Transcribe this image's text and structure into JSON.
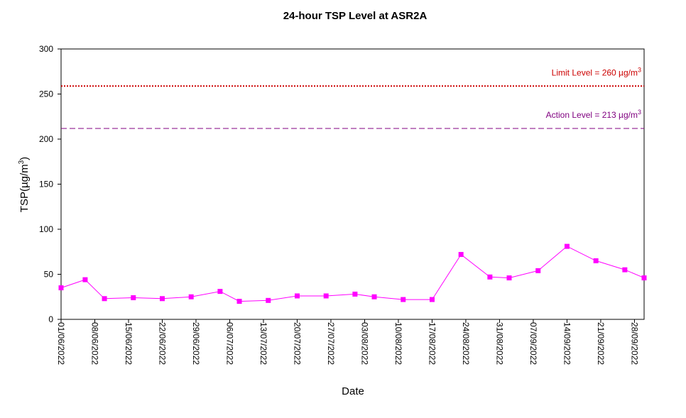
{
  "chart_data": {
    "type": "line",
    "title": "24-hour TSP Level at ASR2A",
    "xlabel": "Date",
    "ylabel": "TSP(µg/m",
    "ylabel_sup": "3",
    "ylabel_close": ")",
    "ylim": [
      0,
      300
    ],
    "yticks": [
      0,
      50,
      100,
      150,
      200,
      250,
      300
    ],
    "grid": false,
    "xlim": [
      "2022-06-01",
      "2022-09-30"
    ],
    "xticks": [
      "01/06/2022",
      "08/06/2022",
      "15/06/2022",
      "22/06/2022",
      "29/06/2022",
      "06/07/2022",
      "13/07/2022",
      "20/07/2022",
      "27/07/2022",
      "03/08/2022",
      "10/08/2022",
      "17/08/2022",
      "24/08/2022",
      "31/08/2022",
      "07/09/2022",
      "14/09/2022",
      "21/09/2022",
      "28/09/2022"
    ],
    "series": [
      {
        "color": "#ff00ff",
        "marker": "square",
        "points": [
          {
            "x": "2022-06-01",
            "y": 35
          },
          {
            "x": "2022-06-06",
            "y": 44
          },
          {
            "x": "2022-06-10",
            "y": 23
          },
          {
            "x": "2022-06-16",
            "y": 24
          },
          {
            "x": "2022-06-22",
            "y": 23
          },
          {
            "x": "2022-06-28",
            "y": 25
          },
          {
            "x": "2022-07-04",
            "y": 31
          },
          {
            "x": "2022-07-08",
            "y": 20
          },
          {
            "x": "2022-07-14",
            "y": 21
          },
          {
            "x": "2022-07-20",
            "y": 26
          },
          {
            "x": "2022-07-26",
            "y": 26
          },
          {
            "x": "2022-08-01",
            "y": 28
          },
          {
            "x": "2022-08-05",
            "y": 25
          },
          {
            "x": "2022-08-11",
            "y": 22
          },
          {
            "x": "2022-08-17",
            "y": 22
          },
          {
            "x": "2022-08-23",
            "y": 72
          },
          {
            "x": "2022-08-29",
            "y": 47
          },
          {
            "x": "2022-09-02",
            "y": 46
          },
          {
            "x": "2022-09-08",
            "y": 54
          },
          {
            "x": "2022-09-14",
            "y": 81
          },
          {
            "x": "2022-09-20",
            "y": 65
          },
          {
            "x": "2022-09-26",
            "y": 55
          },
          {
            "x": "2022-09-30",
            "y": 46
          }
        ]
      }
    ],
    "reference_lines": [
      {
        "name": "limit",
        "value": 260,
        "color": "#cc0000",
        "style": "dotted",
        "label_prefix": "Limit Level  = 260 ",
        "label_unit": "µg/m",
        "label_sup": "3"
      },
      {
        "name": "action",
        "value": 213,
        "color": "#800080",
        "style": "dashed",
        "label_prefix": "Action Level  = 213 ",
        "label_unit": "µg/m",
        "label_sup": "3"
      }
    ]
  }
}
